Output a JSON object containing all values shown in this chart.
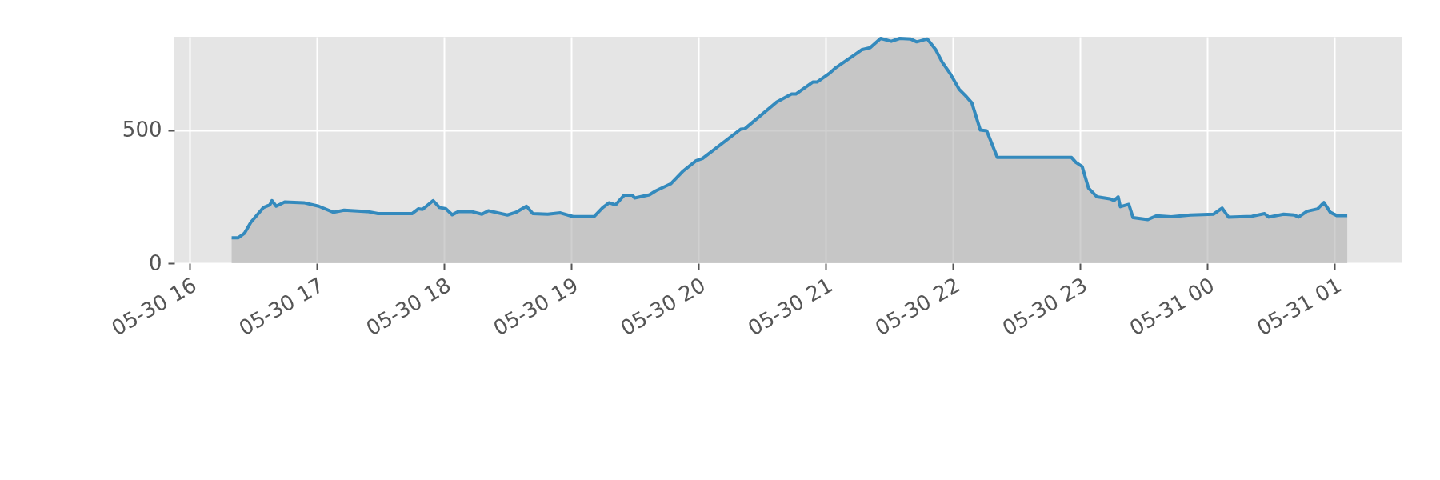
{
  "chart_data": {
    "type": "area",
    "x": [
      "--05-30T16:20",
      "--05-30T16:23",
      "--05-30T16:26",
      "--05-30T16:29",
      "--05-30T16:35",
      "--05-30T16:38",
      "--05-30T16:39",
      "--05-30T16:41",
      "--05-30T16:45",
      "--05-30T16:54",
      "--05-30T17:01",
      "--05-30T17:08",
      "--05-30T17:13",
      "--05-30T17:24",
      "--05-30T17:29",
      "--05-30T17:45",
      "--05-30T17:48",
      "--05-30T17:50",
      "--05-30T17:55",
      "--05-30T17:58",
      "--05-30T18:01",
      "--05-30T18:04",
      "--05-30T18:07",
      "--05-30T18:13",
      "--05-30T18:18",
      "--05-30T18:21",
      "--05-30T18:30",
      "--05-30T18:34",
      "--05-30T18:39",
      "--05-30T18:42",
      "--05-30T18:49",
      "--05-30T18:55",
      "--05-30T19:01",
      "--05-30T19:11",
      "--05-30T19:15",
      "--05-30T19:18",
      "--05-30T19:21",
      "--05-30T19:25",
      "--05-30T19:29",
      "--05-30T19:30",
      "--05-30T19:37",
      "--05-30T19:40",
      "--05-30T19:47",
      "--05-30T19:53",
      "--05-30T19:59",
      "--05-30T20:02",
      "--05-30T20:20",
      "--05-30T20:22",
      "--05-30T20:37",
      "--05-30T20:44",
      "--05-30T20:46",
      "--05-30T20:54",
      "--05-30T20:56",
      "--05-30T21:02",
      "--05-30T21:05",
      "--05-30T21:12",
      "--05-30T21:17",
      "--05-30T21:21",
      "--05-30T21:26",
      "--05-30T21:31",
      "--05-30T21:35",
      "--05-30T21:40",
      "--05-30T21:43",
      "--05-30T21:48",
      "--05-30T21:52",
      "--05-30T21:55",
      "--05-30T21:59",
      "--05-30T22:03",
      "--05-30T22:06",
      "--05-30T22:09",
      "--05-30T22:13",
      "--05-30T22:16",
      "--05-30T22:21",
      "--05-30T22:56",
      "--05-30T22:58",
      "--05-30T23:01",
      "--05-30T23:04",
      "--05-30T23:08",
      "--05-30T23:14",
      "--05-30T23:16",
      "--05-30T23:18",
      "--05-30T23:19",
      "--05-30T23:23",
      "--05-30T23:25",
      "--05-30T23:32",
      "--05-30T23:36",
      "--05-30T23:43",
      "--05-30T23:52",
      "--05-31T00:03",
      "--05-31T00:07",
      "--05-31T00:10",
      "--05-31T00:21",
      "--05-31T00:27",
      "--05-31T00:29",
      "--05-31T00:36",
      "--05-31T00:41",
      "--05-31T00:43",
      "--05-31T00:47",
      "--05-31T00:52",
      "--05-31T00:55",
      "--05-31T00:58",
      "--05-31T01:01",
      "--05-31T01:06"
    ],
    "series": [
      {
        "color": "#348abd",
        "values": [
          95,
          95,
          112,
          153,
          209,
          219,
          235,
          214,
          230,
          227,
          214,
          191,
          199,
          194,
          186,
          186,
          204,
          202,
          235,
          209,
          204,
          182,
          194,
          194,
          184,
          197,
          181,
          191,
          214,
          186,
          184,
          189,
          175,
          176,
          209,
          227,
          219,
          255,
          255,
          245,
          257,
          272,
          298,
          347,
          385,
          393,
          503,
          505,
          605,
          635,
          635,
          680,
          680,
          714,
          735,
          773,
          801,
          809,
          844,
          833,
          844,
          842,
          831,
          842,
          801,
          755,
          709,
          653,
          629,
          602,
          500,
          497,
          397,
          397,
          379,
          363,
          282,
          249,
          242,
          235,
          249,
          212,
          221,
          171,
          164,
          178,
          174,
          181,
          184,
          207,
          173,
          176,
          186,
          173,
          184,
          181,
          173,
          195,
          204,
          228,
          191,
          179,
          179
        ]
      }
    ],
    "xlim": [
      "--05-30T15:53",
      "--05-31T01:32"
    ],
    "xticks": [
      {
        "value": "--05-30T16:00",
        "label": "05-30 16"
      },
      {
        "value": "--05-30T17:00",
        "label": "05-30 17"
      },
      {
        "value": "--05-30T18:00",
        "label": "05-30 18"
      },
      {
        "value": "--05-30T19:00",
        "label": "05-30 19"
      },
      {
        "value": "--05-30T20:00",
        "label": "05-30 20"
      },
      {
        "value": "--05-30T21:00",
        "label": "05-30 21"
      },
      {
        "value": "--05-30T22:00",
        "label": "05-30 22"
      },
      {
        "value": "--05-30T23:00",
        "label": "05-30 23"
      },
      {
        "value": "--05-31T00:00",
        "label": "05-31 00"
      },
      {
        "value": "--05-31T01:00",
        "label": "05-31 01"
      }
    ],
    "ylim": [
      0,
      850
    ],
    "yticks": [
      0,
      500
    ],
    "grid": true
  }
}
